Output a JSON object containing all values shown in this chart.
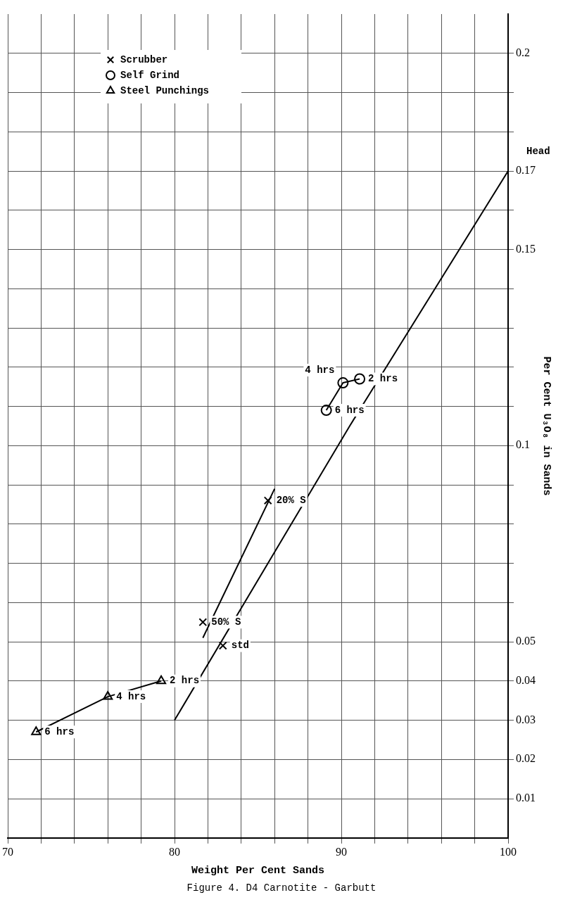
{
  "chart_data": {
    "type": "scatter",
    "title": null,
    "xlabel": "Weight Per Cent Sands",
    "ylabel": "Per Cent U₃O₈ in Sands",
    "xlim": [
      70,
      100
    ],
    "ylim": [
      0,
      0.21
    ],
    "xticks": [
      70,
      {
        "value": 72,
        "label": null
      },
      {
        "value": 74,
        "label": null
      },
      {
        "value": 76,
        "label": null
      },
      {
        "value": 78,
        "label": null
      },
      80,
      {
        "value": 82,
        "label": null
      },
      {
        "value": 84,
        "label": null
      },
      {
        "value": 86,
        "label": null
      },
      {
        "value": 88,
        "label": null
      },
      90,
      {
        "value": 92,
        "label": null
      },
      {
        "value": 94,
        "label": null
      },
      {
        "value": 96,
        "label": null
      },
      {
        "value": 98,
        "label": null
      },
      100
    ],
    "yticks": [
      0.01,
      0.02,
      0.03,
      0.04,
      0.05,
      {
        "value": 0.06,
        "label": null
      },
      {
        "value": 0.07,
        "label": null
      },
      {
        "value": 0.08,
        "label": null
      },
      {
        "value": 0.09,
        "label": null
      },
      0.1,
      {
        "value": 0.11,
        "label": null
      },
      {
        "value": 0.12,
        "label": null
      },
      {
        "value": 0.13,
        "label": null
      },
      {
        "value": 0.14,
        "label": null
      },
      0.15,
      {
        "value": 0.16,
        "label": null
      },
      0.17,
      {
        "value": 0.18,
        "label": null
      },
      {
        "value": 0.19,
        "label": null
      },
      0.2
    ],
    "grid": true,
    "legend": "top left",
    "series": [
      {
        "name": "Scrubber",
        "marker": "cross",
        "color": "#000000",
        "x": [
          82.9
        ],
        "values": [
          0.049
        ]
      },
      {
        "marker": "cross",
        "color": "#000000",
        "x": [
          81.7,
          85.6
        ],
        "values": [
          0.055,
          0.086
        ]
      },
      {
        "name": "Self Grind",
        "type": "line",
        "marker": "circle",
        "color": "#000000",
        "x": [
          89.1,
          90.1,
          91.1
        ],
        "values": [
          0.109,
          0.116,
          0.117
        ]
      },
      {
        "name": "Steel Punchings",
        "type": "line",
        "marker": "triangle",
        "color": "#000000",
        "x": [
          71.7,
          76.0,
          79.2
        ],
        "values": [
          0.027,
          0.036,
          0.04
        ]
      },
      {
        "type": "line",
        "marker": "none",
        "color": "#000000",
        "x": [
          81.7,
          86.0
        ],
        "values": [
          0.051,
          0.089
        ]
      },
      {
        "type": "line",
        "marker": "none",
        "color": "#000000",
        "x": [
          80.0,
          90.5,
          100.0
        ],
        "values": [
          0.03,
          0.105,
          0.17
        ]
      }
    ],
    "annotations": [
      {
        "text": "6 hrs",
        "x": 71.7,
        "y": 0.027
      },
      {
        "text": "4 hrs",
        "x": 76.0,
        "y": 0.036
      },
      {
        "text": "2 hrs",
        "x": 79.2,
        "y": 0.04
      },
      {
        "text": "50% S",
        "x": 81.7,
        "y": 0.055
      },
      {
        "text": "std",
        "x": 82.9,
        "y": 0.049
      },
      {
        "text": "20% S",
        "x": 85.6,
        "y": 0.086
      },
      {
        "text": "6 hrs",
        "x": 89.1,
        "y": 0.109
      },
      {
        "text": "4 hrs",
        "x": 90.1,
        "y": 0.116
      },
      {
        "text": "2 hrs",
        "x": 91.1,
        "y": 0.117
      },
      {
        "text": "Head",
        "x": 100,
        "y": 0.17
      },
      "Figure 4. D4 Carnotite - Garbutt"
    ]
  }
}
